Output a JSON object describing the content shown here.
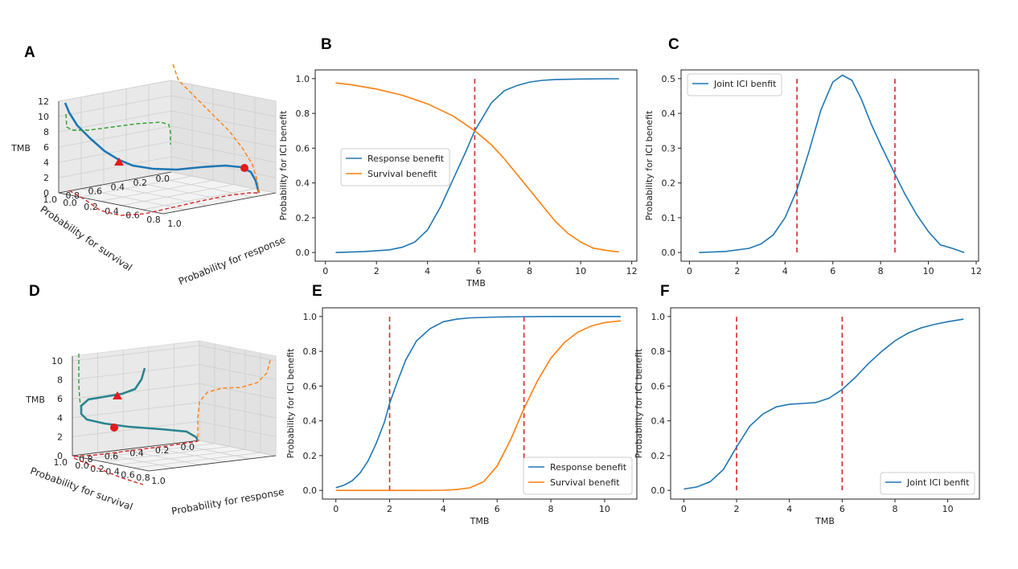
{
  "panel_labels": {
    "A": "A",
    "B": "B",
    "C": "C",
    "D": "D",
    "E": "E",
    "F": "F"
  },
  "colors": {
    "response": "#1f77b4",
    "survival": "#ff7f0e",
    "threshold": "#d62728",
    "projection_green": "#2ca02c",
    "marker": "#e31a1c"
  },
  "chart_data": [
    {
      "id": "A",
      "type": "line3d",
      "zlabel": "TMB",
      "xlabel": "Probability for survival",
      "ylabel": "Probability for response",
      "z_ticks": [
        "0",
        "2",
        "4",
        "6",
        "8",
        "10",
        "12"
      ],
      "x_ticks": [
        "0.0",
        "0.2",
        "0.4",
        "0.6",
        "0.8",
        "1.0"
      ],
      "y_ticks": [
        "0.0",
        "0.2",
        "0.4",
        "0.6",
        "0.8",
        "1.0"
      ],
      "markers": [
        "triangle",
        "circle"
      ],
      "projections": [
        "green dashed (survival–TMB)",
        "orange dashed (response–TMB)",
        "red dashed (floor)"
      ]
    },
    {
      "id": "B",
      "type": "line",
      "xlabel": "TMB",
      "ylabel": "Probability for ICI benefit",
      "xlim": [
        0,
        12
      ],
      "ylim": [
        0,
        1
      ],
      "x_ticks": [
        "0",
        "2",
        "4",
        "6",
        "8",
        "10",
        "12"
      ],
      "y_ticks": [
        "0.0",
        "0.2",
        "0.4",
        "0.6",
        "0.8",
        "1.0"
      ],
      "legend_position": "center-left",
      "threshold_lines_x": [
        5.85
      ],
      "series": [
        {
          "name": "Response benefit",
          "color": "#1f77b4",
          "x": [
            0.4,
            1.5,
            2.5,
            3.0,
            3.5,
            4.0,
            4.5,
            5.0,
            5.5,
            5.85,
            6.5,
            7.0,
            7.5,
            8.0,
            8.5,
            9.0,
            10.0,
            11.0,
            11.5
          ],
          "y": [
            0.0,
            0.005,
            0.015,
            0.03,
            0.06,
            0.13,
            0.26,
            0.42,
            0.58,
            0.7,
            0.86,
            0.93,
            0.96,
            0.98,
            0.99,
            0.995,
            0.998,
            0.999,
            0.999
          ]
        },
        {
          "name": "Survival benefit",
          "color": "#ff7f0e",
          "x": [
            0.4,
            1.0,
            2.0,
            3.0,
            4.0,
            5.0,
            5.85,
            6.5,
            7.0,
            7.5,
            8.0,
            8.5,
            9.0,
            9.5,
            10.0,
            10.5,
            11.0,
            11.5
          ],
          "y": [
            0.975,
            0.965,
            0.94,
            0.905,
            0.855,
            0.785,
            0.7,
            0.62,
            0.54,
            0.45,
            0.36,
            0.27,
            0.18,
            0.11,
            0.06,
            0.025,
            0.012,
            0.003
          ]
        }
      ]
    },
    {
      "id": "C",
      "type": "line",
      "xlabel": "",
      "ylabel": "Probability for ICI benefit",
      "xlim": [
        0,
        12
      ],
      "ylim": [
        0,
        0.5
      ],
      "x_ticks": [
        "0",
        "2",
        "4",
        "6",
        "8",
        "10",
        "12"
      ],
      "y_ticks": [
        "0.0",
        "0.1",
        "0.2",
        "0.3",
        "0.4",
        "0.5"
      ],
      "legend_position": "top-left",
      "threshold_lines_x": [
        4.5,
        8.6
      ],
      "series": [
        {
          "name": "Joint ICI benfit",
          "color": "#1f77b4",
          "x": [
            0.4,
            1.5,
            2.5,
            3.0,
            3.5,
            4.0,
            4.5,
            5.0,
            5.5,
            6.0,
            6.4,
            6.8,
            7.2,
            7.6,
            8.0,
            8.6,
            9.0,
            9.5,
            10.0,
            10.5,
            11.0,
            11.5
          ],
          "y": [
            0.0,
            0.003,
            0.012,
            0.025,
            0.05,
            0.1,
            0.18,
            0.29,
            0.41,
            0.49,
            0.51,
            0.495,
            0.44,
            0.37,
            0.31,
            0.225,
            0.17,
            0.11,
            0.06,
            0.022,
            0.012,
            0.0
          ]
        }
      ]
    },
    {
      "id": "D",
      "type": "line3d",
      "zlabel": "TMB",
      "xlabel": "Probability for survival",
      "ylabel": "Probability for response",
      "z_ticks": [
        "0",
        "2",
        "4",
        "6",
        "8",
        "10"
      ],
      "x_ticks": [
        "0.0",
        "0.2",
        "0.4",
        "0.6",
        "0.8",
        "1.0"
      ],
      "y_ticks": [
        "0.0",
        "0.2",
        "0.4",
        "0.6",
        "0.8",
        "1.0"
      ],
      "markers": [
        "triangle",
        "circle"
      ],
      "projections": [
        "green dashed (survival–TMB)",
        "orange dashed (response–TMB)",
        "red dashed (floor)"
      ]
    },
    {
      "id": "E",
      "type": "line",
      "xlabel": "TMB",
      "ylabel": "Probability for ICI benefit",
      "xlim": [
        -0.5,
        11
      ],
      "ylim": [
        0,
        1
      ],
      "x_ticks": [
        "0",
        "2",
        "4",
        "6",
        "8",
        "10"
      ],
      "y_ticks": [
        "0.0",
        "0.2",
        "0.4",
        "0.6",
        "0.8",
        "1.0"
      ],
      "legend_position": "bottom-right",
      "threshold_lines_x": [
        2,
        7
      ],
      "series": [
        {
          "name": "Response benefit",
          "color": "#1f77b4",
          "x": [
            0,
            0.3,
            0.6,
            0.9,
            1.2,
            1.5,
            1.8,
            2.0,
            2.3,
            2.6,
            3.0,
            3.5,
            4.0,
            4.5,
            5.0,
            6.0,
            7.0,
            8.0,
            9.0,
            10.0,
            10.6
          ],
          "y": [
            0.015,
            0.03,
            0.055,
            0.1,
            0.17,
            0.27,
            0.39,
            0.5,
            0.63,
            0.75,
            0.86,
            0.93,
            0.97,
            0.985,
            0.992,
            0.997,
            0.999,
            1.0,
            1.0,
            1.0,
            1.0
          ]
        },
        {
          "name": "Survival benefit",
          "color": "#ff7f0e",
          "x": [
            0,
            1,
            2,
            3,
            4,
            4.5,
            5.0,
            5.5,
            6.0,
            6.5,
            7.0,
            7.5,
            8.0,
            8.5,
            9.0,
            9.5,
            10.0,
            10.6
          ],
          "y": [
            0,
            0,
            0,
            0,
            0.001,
            0.005,
            0.015,
            0.05,
            0.14,
            0.29,
            0.47,
            0.63,
            0.76,
            0.85,
            0.91,
            0.945,
            0.965,
            0.975
          ]
        }
      ]
    },
    {
      "id": "F",
      "type": "line",
      "xlabel": "TMB",
      "ylabel": "Probability for ICI benefit",
      "xlim": [
        -0.5,
        11
      ],
      "ylim": [
        0,
        1
      ],
      "x_ticks": [
        "0",
        "2",
        "4",
        "6",
        "8",
        "10"
      ],
      "y_ticks": [
        "0.0",
        "0.2",
        "0.4",
        "0.6",
        "0.8",
        "1.0"
      ],
      "legend_position": "bottom-right",
      "threshold_lines_x": [
        2,
        6
      ],
      "series": [
        {
          "name": "Joint ICI benfit",
          "color": "#1f77b4",
          "x": [
            0,
            0.5,
            1.0,
            1.5,
            2.0,
            2.5,
            3.0,
            3.5,
            4.0,
            4.5,
            5.0,
            5.5,
            6.0,
            6.5,
            7.0,
            7.5,
            8.0,
            8.5,
            9.0,
            9.5,
            10.0,
            10.6
          ],
          "y": [
            0.008,
            0.02,
            0.05,
            0.12,
            0.25,
            0.37,
            0.44,
            0.48,
            0.495,
            0.5,
            0.505,
            0.53,
            0.58,
            0.65,
            0.73,
            0.8,
            0.86,
            0.905,
            0.935,
            0.955,
            0.97,
            0.985
          ]
        }
      ]
    }
  ]
}
